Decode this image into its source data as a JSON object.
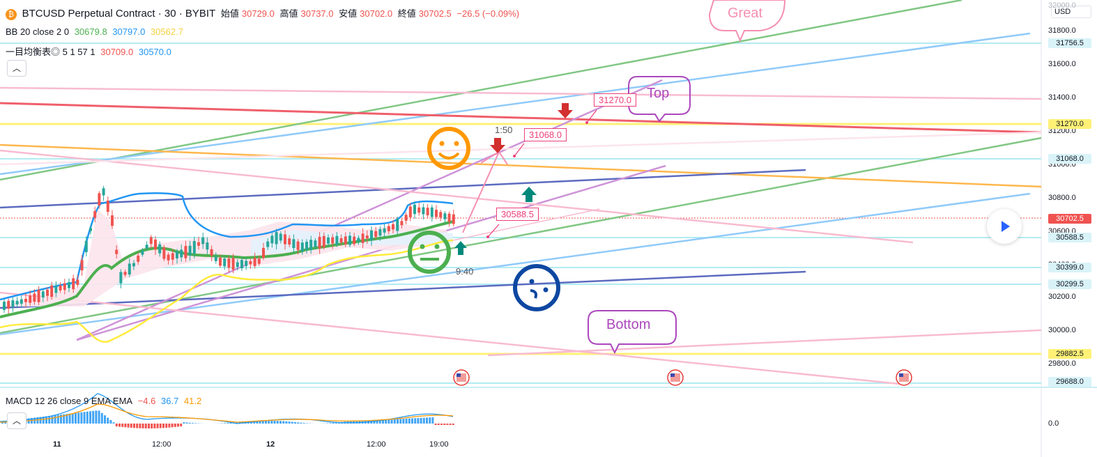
{
  "header": {
    "title": "BTCUSD Perpetual Contract · 30 · BYBIT",
    "open_label": "始値",
    "open_value": "30729.0",
    "high_label": "高値",
    "high_value": "30737.0",
    "low_label": "安値",
    "low_value": "30702.0",
    "close_label": "終値",
    "close_value": "30702.5",
    "change": "−26.5 (−0.09%)"
  },
  "indicators": {
    "bb": {
      "label": "BB 20 close 2 0",
      "v1": "30679.8",
      "v2": "30797.0",
      "v3": "30562.7"
    },
    "ichimoku": {
      "label": "一目均衡表◎ 5 1 57 1",
      "v1": "30709.0",
      "v2": "30570.0"
    },
    "macd": {
      "label": "MACD 12 26 close 9 EMA EMA",
      "v1": "−4.6",
      "v2": "36.7",
      "v3": "41.2"
    }
  },
  "currency": "USD",
  "price_axis": [
    "32000.0",
    "31800.0",
    "31600.0",
    "31400.0",
    "31200.0",
    "31000.0",
    "30800.0",
    "30600.0",
    "30400.0",
    "30200.0",
    "30000.0",
    "29800.0"
  ],
  "price_tags": [
    {
      "text": "31756.5",
      "kind": "line"
    },
    {
      "text": "31270.0",
      "kind": "yellow"
    },
    {
      "text": "31068.0",
      "kind": "line"
    },
    {
      "text": "30702.5",
      "kind": "current"
    },
    {
      "text": "30588.5",
      "kind": "line"
    },
    {
      "text": "30399.0",
      "kind": "line"
    },
    {
      "text": "30299.5",
      "kind": "line"
    },
    {
      "text": "29882.5",
      "kind": "yellow"
    },
    {
      "text": "29688.0",
      "kind": "line"
    }
  ],
  "macd_axis": "0.0",
  "time_axis": [
    "11",
    "12:00",
    "12",
    "12:00",
    "19:00"
  ],
  "annotations": {
    "great": "Great",
    "top": "Top",
    "bottom": "Bottom",
    "c1": "31270.0",
    "c2": "31068.0",
    "c3": "30588.5",
    "t1": "1:50",
    "t2": "9:40"
  },
  "colors": {
    "up": "#26a69a",
    "down": "#ef5350",
    "bb_mid": "#4caf50",
    "bb_up": "#2196f3",
    "bb_low": "#ffeb3b"
  }
}
